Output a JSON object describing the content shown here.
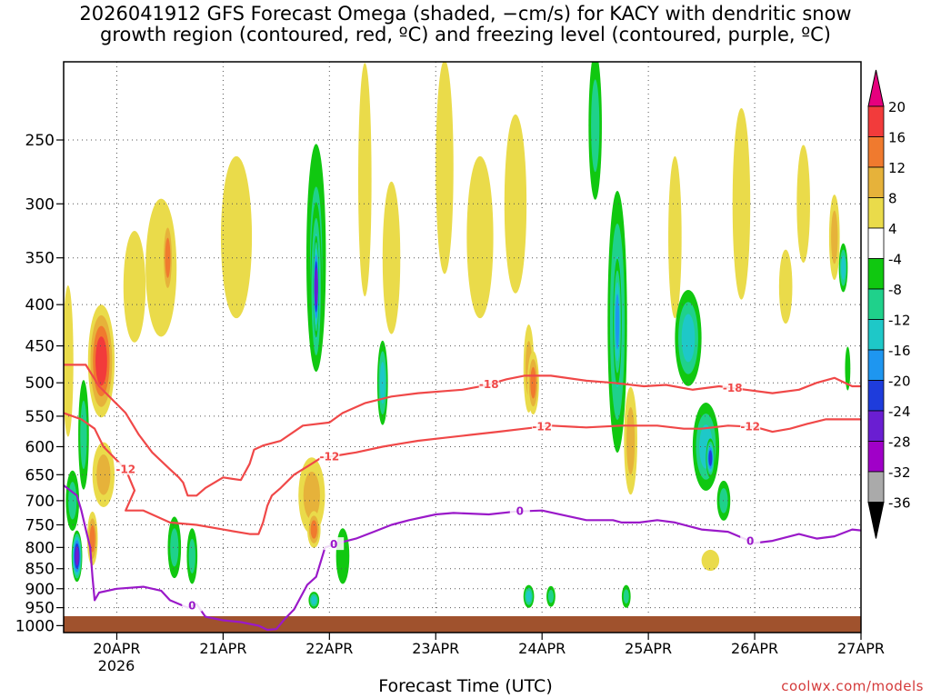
{
  "chart_data": {
    "type": "heatmap",
    "title_line1": "2026041912 GFS Forecast Omega (shaded, −cm/s) for KACY with dendritic snow",
    "title_line2": "growth region (contoured, red, ºC) and freezing level (contoured, purple, ºC)",
    "xlabel": "Forecast Time (UTC)",
    "year_label": "2026",
    "credit": "coolwx.com/models",
    "x_ticks": [
      {
        "t": 12,
        "label": "20APR"
      },
      {
        "t": 36,
        "label": "21APR"
      },
      {
        "t": 60,
        "label": "22APR"
      },
      {
        "t": 84,
        "label": "23APR"
      },
      {
        "t": 108,
        "label": "24APR"
      },
      {
        "t": 132,
        "label": "25APR"
      },
      {
        "t": 156,
        "label": "26APR"
      },
      {
        "t": 180,
        "label": "27APR"
      }
    ],
    "x_range": [
      0,
      180
    ],
    "y_levels": [
      250,
      300,
      350,
      400,
      450,
      500,
      550,
      600,
      650,
      700,
      750,
      800,
      850,
      900,
      950,
      1000
    ],
    "y_range": [
      200,
      1020
    ],
    "colorbar": {
      "labels": [
        "20",
        "16",
        "12",
        "8",
        "4",
        "-4",
        "-8",
        "-12",
        "-16",
        "-20",
        "-24",
        "-28",
        "-32",
        "-36"
      ],
      "bands": [
        {
          "lo": 16,
          "hi": 20,
          "color": "#f23b3b"
        },
        {
          "lo": 12,
          "hi": 16,
          "color": "#f07a2e"
        },
        {
          "lo": 8,
          "hi": 12,
          "color": "#e6b23a"
        },
        {
          "lo": 4,
          "hi": 8,
          "color": "#eadb4a"
        },
        {
          "lo": -4,
          "hi": 4,
          "color": "#ffffff"
        },
        {
          "lo": -8,
          "hi": -4,
          "color": "#10c810"
        },
        {
          "lo": -12,
          "hi": -8,
          "color": "#1fd18b"
        },
        {
          "lo": -16,
          "hi": -12,
          "color": "#1ec8c8"
        },
        {
          "lo": -20,
          "hi": -16,
          "color": "#1e96f0"
        },
        {
          "lo": -24,
          "hi": -20,
          "color": "#1e3cdc"
        },
        {
          "lo": -28,
          "hi": -24,
          "color": "#6a1ed2"
        },
        {
          "lo": -32,
          "hi": -28,
          "color": "#a000c8"
        },
        {
          "lo": -36,
          "hi": -32,
          "color": "#aaaaaa"
        }
      ],
      "top_arrow_color": "#e6007e",
      "bottom_arrow_color": "#000000"
    },
    "omega_features": [
      {
        "t": 1,
        "p": 470,
        "dt": 1.2,
        "dp": 200,
        "v": 6
      },
      {
        "t": 2,
        "p": 700,
        "dt": 1.5,
        "dp": 120,
        "v": -10
      },
      {
        "t": 3,
        "p": 820,
        "dt": 1.2,
        "dp": 120,
        "v": -26
      },
      {
        "t": 4.5,
        "p": 580,
        "dt": 1.2,
        "dp": 180,
        "v": -8
      },
      {
        "t": 6.5,
        "p": 780,
        "dt": 1.2,
        "dp": 120,
        "v": 14
      },
      {
        "t": 8.5,
        "p": 470,
        "dt": 3,
        "dp": 150,
        "v": 18
      },
      {
        "t": 9,
        "p": 650,
        "dt": 2.5,
        "dp": 120,
        "v": 10
      },
      {
        "t": 16,
        "p": 380,
        "dt": 2.5,
        "dp": 120,
        "v": 6
      },
      {
        "t": 22,
        "p": 360,
        "dt": 3.5,
        "dp": 140,
        "v": 6
      },
      {
        "t": 23.5,
        "p": 350,
        "dt": 1.2,
        "dp": 80,
        "v": 14
      },
      {
        "t": 25,
        "p": 800,
        "dt": 1.5,
        "dp": 140,
        "v": -10
      },
      {
        "t": 29,
        "p": 820,
        "dt": 1.2,
        "dp": 130,
        "v": -10
      },
      {
        "t": 39,
        "p": 330,
        "dt": 3.5,
        "dp": 150,
        "v": 5
      },
      {
        "t": 57,
        "p": 350,
        "dt": 2.2,
        "dp": 220,
        "v": -10
      },
      {
        "t": 57,
        "p": 380,
        "dt": 1.3,
        "dp": 180,
        "v": -18
      },
      {
        "t": 57,
        "p": 380,
        "dt": 0.7,
        "dp": 110,
        "v": -24
      },
      {
        "t": 56,
        "p": 690,
        "dt": 3,
        "dp": 150,
        "v": 8
      },
      {
        "t": 56.5,
        "p": 760,
        "dt": 1.5,
        "dp": 80,
        "v": 14
      },
      {
        "t": 56.5,
        "p": 930,
        "dt": 1.2,
        "dp": 45,
        "v": -12
      },
      {
        "t": 63,
        "p": 820,
        "dt": 1.5,
        "dp": 130,
        "v": -6
      },
      {
        "t": 68,
        "p": 280,
        "dt": 1.5,
        "dp": 180,
        "v": 5
      },
      {
        "t": 72,
        "p": 500,
        "dt": 1.2,
        "dp": 120,
        "v": -12
      },
      {
        "t": 74,
        "p": 350,
        "dt": 2,
        "dp": 150,
        "v": 5
      },
      {
        "t": 86,
        "p": 270,
        "dt": 2,
        "dp": 160,
        "v": 5
      },
      {
        "t": 94,
        "p": 330,
        "dt": 3,
        "dp": 150,
        "v": 6
      },
      {
        "t": 102,
        "p": 300,
        "dt": 2.5,
        "dp": 150,
        "v": 5
      },
      {
        "t": 105,
        "p": 480,
        "dt": 1.2,
        "dp": 120,
        "v": 8
      },
      {
        "t": 106,
        "p": 500,
        "dt": 1.3,
        "dp": 90,
        "v": 12
      },
      {
        "t": 105,
        "p": 920,
        "dt": 1.2,
        "dp": 60,
        "v": -14
      },
      {
        "t": 110,
        "p": 920,
        "dt": 1,
        "dp": 55,
        "v": -10
      },
      {
        "t": 120,
        "p": 240,
        "dt": 1.5,
        "dp": 100,
        "v": -8
      },
      {
        "t": 125,
        "p": 420,
        "dt": 2.2,
        "dp": 300,
        "v": -12
      },
      {
        "t": 125,
        "p": 420,
        "dt": 1,
        "dp": 150,
        "v": -18
      },
      {
        "t": 128,
        "p": 590,
        "dt": 1.5,
        "dp": 180,
        "v": 10
      },
      {
        "t": 127,
        "p": 920,
        "dt": 1,
        "dp": 60,
        "v": -10
      },
      {
        "t": 138,
        "p": 330,
        "dt": 1.5,
        "dp": 150,
        "v": 5
      },
      {
        "t": 141,
        "p": 440,
        "dt": 3,
        "dp": 120,
        "v": -12
      },
      {
        "t": 145,
        "p": 600,
        "dt": 3,
        "dp": 150,
        "v": -14
      },
      {
        "t": 146,
        "p": 620,
        "dt": 1,
        "dp": 70,
        "v": -22
      },
      {
        "t": 149,
        "p": 700,
        "dt": 1.5,
        "dp": 80,
        "v": -10
      },
      {
        "t": 146,
        "p": 830,
        "dt": 2,
        "dp": 50,
        "v": 5
      },
      {
        "t": 153,
        "p": 300,
        "dt": 2,
        "dp": 160,
        "v": 5
      },
      {
        "t": 163,
        "p": 380,
        "dt": 1.5,
        "dp": 80,
        "v": 6
      },
      {
        "t": 167,
        "p": 300,
        "dt": 1.5,
        "dp": 100,
        "v": 5
      },
      {
        "t": 174,
        "p": 330,
        "dt": 1.2,
        "dp": 80,
        "v": 8
      },
      {
        "t": 176,
        "p": 360,
        "dt": 1,
        "dp": 50,
        "v": -12
      },
      {
        "t": 177,
        "p": 480,
        "dt": 0.6,
        "dp": 60,
        "v": -6
      }
    ],
    "contours": [
      {
        "name": "dgz-minus18",
        "label": "-18",
        "color": "#f04848",
        "label_t": [
          96,
          151
        ],
        "points": [
          [
            0,
            475
          ],
          [
            5,
            475
          ],
          [
            8,
            505
          ],
          [
            14,
            545
          ],
          [
            17,
            580
          ],
          [
            20,
            610
          ],
          [
            24,
            640
          ],
          [
            26,
            655
          ],
          [
            27,
            665
          ],
          [
            28,
            690
          ],
          [
            30,
            690
          ],
          [
            32,
            675
          ],
          [
            36,
            655
          ],
          [
            40,
            660
          ],
          [
            42,
            630
          ],
          [
            43,
            605
          ],
          [
            45,
            598
          ],
          [
            49,
            590
          ],
          [
            54,
            565
          ],
          [
            60,
            560
          ],
          [
            63,
            545
          ],
          [
            68,
            530
          ],
          [
            74,
            520
          ],
          [
            80,
            515
          ],
          [
            86,
            512
          ],
          [
            90,
            510
          ],
          [
            95,
            504
          ],
          [
            100,
            495
          ],
          [
            104,
            490
          ],
          [
            110,
            490
          ],
          [
            118,
            497
          ],
          [
            124,
            500
          ],
          [
            131,
            505
          ],
          [
            136,
            503
          ],
          [
            142,
            510
          ],
          [
            148,
            505
          ],
          [
            154,
            510
          ],
          [
            160,
            515
          ],
          [
            166,
            510
          ],
          [
            170,
            500
          ],
          [
            174,
            493
          ],
          [
            178,
            505
          ],
          [
            180,
            505
          ]
        ]
      },
      {
        "name": "dgz-minus12",
        "label": "-12",
        "color": "#f04848",
        "label_t": [
          14,
          60,
          108,
          155
        ],
        "points": [
          [
            0,
            545
          ],
          [
            4,
            555
          ],
          [
            7,
            570
          ],
          [
            9,
            600
          ],
          [
            14,
            640
          ],
          [
            16,
            680
          ],
          [
            14,
            720
          ],
          [
            18,
            720
          ],
          [
            24,
            745
          ],
          [
            30,
            750
          ],
          [
            36,
            760
          ],
          [
            42,
            770
          ],
          [
            44,
            770
          ],
          [
            45,
            745
          ],
          [
            46,
            710
          ],
          [
            47,
            690
          ],
          [
            49,
            675
          ],
          [
            52,
            650
          ],
          [
            55,
            635
          ],
          [
            58,
            620
          ],
          [
            62,
            615
          ],
          [
            66,
            610
          ],
          [
            72,
            600
          ],
          [
            76,
            595
          ],
          [
            80,
            590
          ],
          [
            86,
            585
          ],
          [
            92,
            580
          ],
          [
            98,
            575
          ],
          [
            104,
            570
          ],
          [
            110,
            565
          ],
          [
            118,
            568
          ],
          [
            126,
            565
          ],
          [
            134,
            565
          ],
          [
            140,
            570
          ],
          [
            144,
            570
          ],
          [
            150,
            565
          ],
          [
            156,
            567
          ],
          [
            160,
            575
          ],
          [
            164,
            570
          ],
          [
            168,
            562
          ],
          [
            172,
            555
          ],
          [
            176,
            555
          ],
          [
            180,
            555
          ]
        ]
      },
      {
        "name": "freezing-level-0",
        "label": "0",
        "color": "#9a19c9",
        "label_t": [
          29,
          61,
          103,
          155
        ],
        "points": [
          [
            0,
            670
          ],
          [
            3,
            690
          ],
          [
            4,
            720
          ],
          [
            5,
            760
          ],
          [
            6,
            800
          ],
          [
            6.5,
            870
          ],
          [
            7,
            930
          ],
          [
            8,
            910
          ],
          [
            12,
            900
          ],
          [
            18,
            895
          ],
          [
            22,
            905
          ],
          [
            24,
            930
          ],
          [
            28,
            950
          ],
          [
            30,
            940
          ],
          [
            32,
            975
          ],
          [
            36,
            985
          ],
          [
            40,
            990
          ],
          [
            44,
            1000
          ],
          [
            46,
            1012
          ],
          [
            48,
            1010
          ],
          [
            50,
            980
          ],
          [
            52,
            955
          ],
          [
            55,
            890
          ],
          [
            57,
            870
          ],
          [
            59,
            800
          ],
          [
            62,
            790
          ],
          [
            66,
            780
          ],
          [
            70,
            765
          ],
          [
            74,
            750
          ],
          [
            78,
            740
          ],
          [
            84,
            728
          ],
          [
            88,
            725
          ],
          [
            96,
            728
          ],
          [
            102,
            722
          ],
          [
            108,
            720
          ],
          [
            114,
            732
          ],
          [
            118,
            740
          ],
          [
            124,
            740
          ],
          [
            126,
            745
          ],
          [
            130,
            745
          ],
          [
            134,
            740
          ],
          [
            138,
            745
          ],
          [
            144,
            760
          ],
          [
            150,
            765
          ],
          [
            156,
            790
          ],
          [
            160,
            785
          ],
          [
            166,
            770
          ],
          [
            170,
            780
          ],
          [
            174,
            775
          ],
          [
            178,
            760
          ],
          [
            180,
            762
          ]
        ]
      }
    ]
  }
}
